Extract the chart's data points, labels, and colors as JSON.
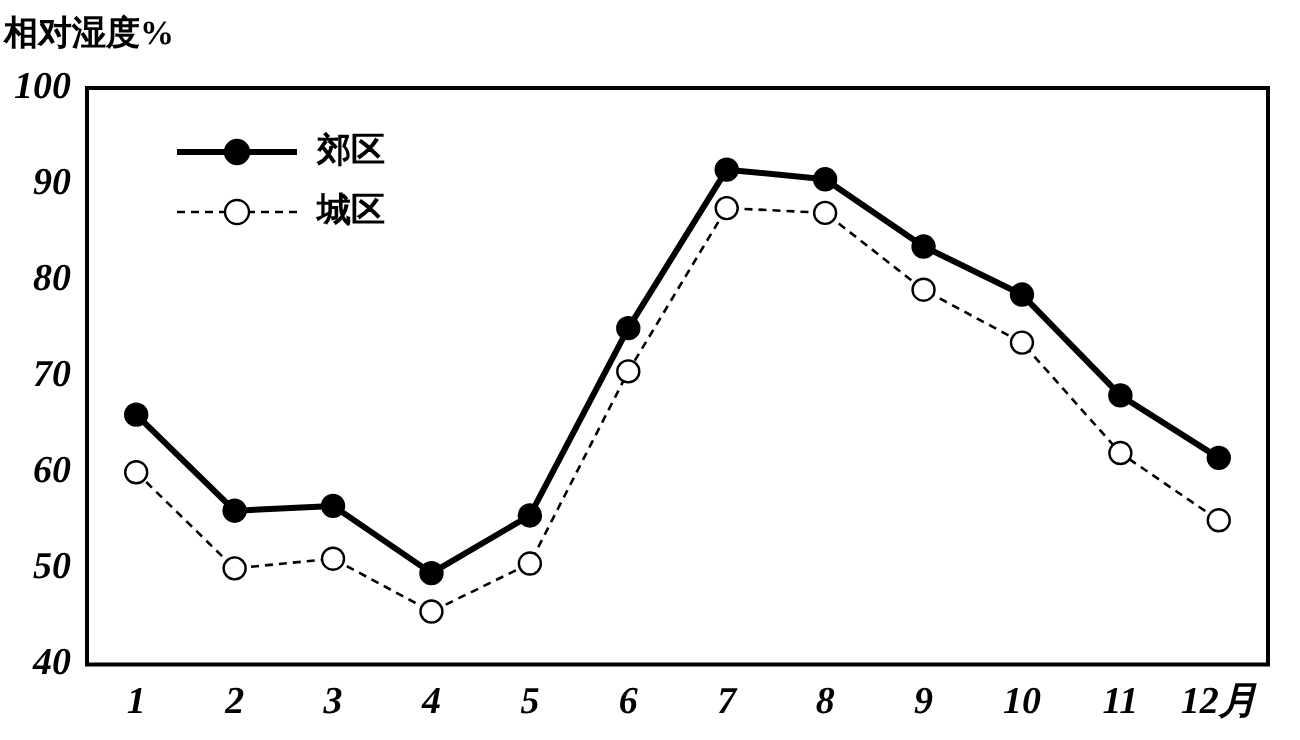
{
  "chart_data": {
    "type": "line",
    "ylabel": "相对湿度%",
    "categories": [
      "1",
      "2",
      "3",
      "4",
      "5",
      "6",
      "7",
      "8",
      "9",
      "10",
      "11",
      "12月"
    ],
    "series": [
      {
        "name": "郊区",
        "color": "#000000",
        "line_style": "solid",
        "marker": "circle",
        "values": [
          66,
          56,
          56.5,
          49.5,
          55.5,
          75,
          91.5,
          90.5,
          83.5,
          78.5,
          68,
          61.5
        ]
      },
      {
        "name": "城区",
        "color": "#000000",
        "line_style": "dashed",
        "marker": "circle",
        "values": [
          60,
          50,
          51,
          45.5,
          50.5,
          70.5,
          87.5,
          87,
          79,
          73.5,
          62,
          55
        ]
      }
    ],
    "ylim": [
      40,
      100
    ],
    "yticks": [
      40,
      50,
      60,
      70,
      80,
      90,
      100
    ],
    "grid": false,
    "legend": "top left"
  }
}
